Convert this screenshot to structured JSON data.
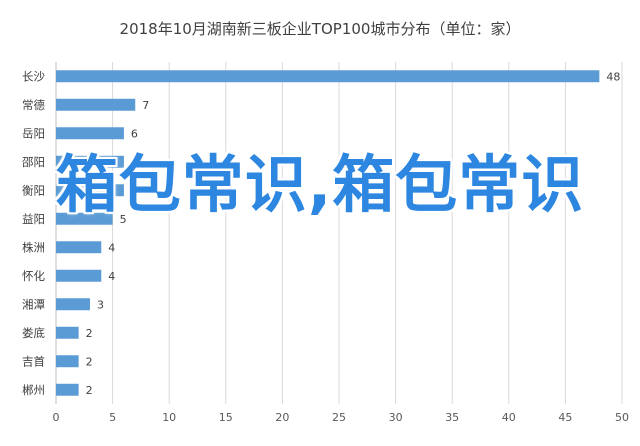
{
  "chart_data": {
    "type": "bar",
    "orientation": "horizontal",
    "title": "2018年10月湖南新三板企业TOP100城市分布（单位：家）",
    "categories": [
      "长沙",
      "常德",
      "岳阳",
      "邵阳",
      "衡阳",
      "益阳",
      "株洲",
      "怀化",
      "湘潭",
      "娄底",
      "吉首",
      "郴州"
    ],
    "values": [
      48,
      7,
      6,
      6,
      6,
      5,
      4,
      4,
      3,
      2,
      2,
      2
    ],
    "xlim": [
      0,
      50
    ],
    "xticks": [
      0,
      5,
      10,
      15,
      20,
      25,
      30,
      35,
      40,
      45,
      50
    ],
    "grid": true,
    "bar_color": "#5b9bd5",
    "data_labels": true
  },
  "watermark": {
    "text": "箱包常识,箱包常识",
    "color": "#2d86e0"
  }
}
